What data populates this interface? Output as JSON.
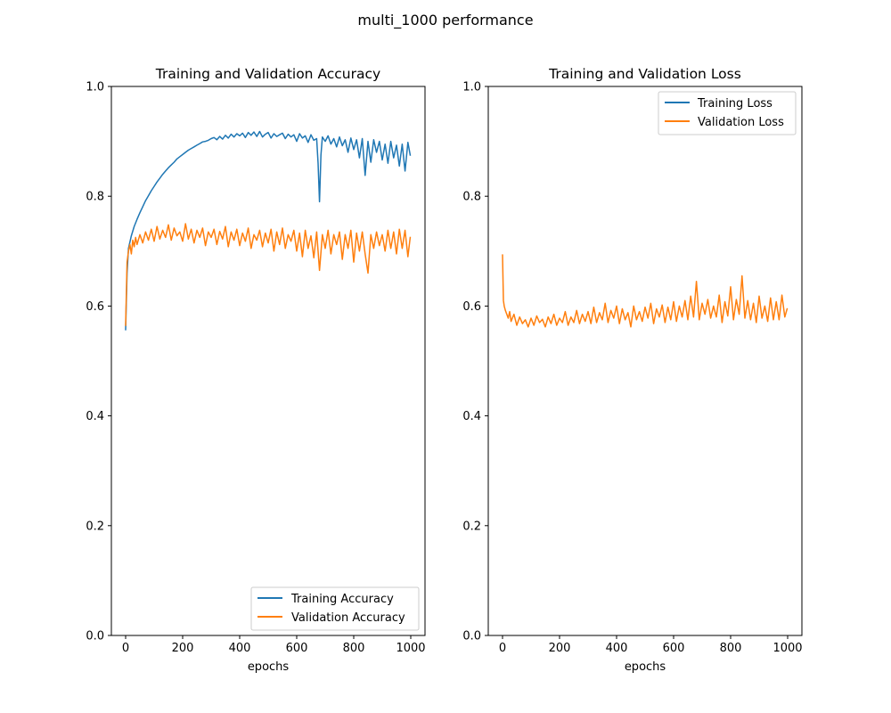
{
  "figure": {
    "suptitle": "multi_1000 performance"
  },
  "colors": {
    "training": "#1f77b4",
    "validation": "#ff7f0e"
  },
  "chart_data": [
    {
      "type": "line",
      "title": "Training and Validation Accuracy",
      "xlabel": "epochs",
      "ylabel": "",
      "xlim": [
        -50,
        1050
      ],
      "ylim": [
        0.0,
        1.0
      ],
      "xticks": [
        0,
        200,
        400,
        600,
        800,
        1000
      ],
      "xtick_labels": [
        "0",
        "200",
        "400",
        "600",
        "800",
        "1000"
      ],
      "yticks": [
        0.0,
        0.2,
        0.4,
        0.6,
        0.8,
        1.0
      ],
      "ytick_labels": [
        "0.0",
        "0.2",
        "0.4",
        "0.6",
        "0.8",
        "1.0"
      ],
      "grid": false,
      "legend_position": "lower right",
      "series": [
        {
          "name": "Training Accuracy",
          "color": "#1f77b4",
          "x": [
            0,
            5,
            10,
            20,
            30,
            40,
            50,
            60,
            70,
            80,
            90,
            100,
            110,
            120,
            130,
            140,
            150,
            160,
            170,
            180,
            190,
            200,
            210,
            220,
            230,
            240,
            250,
            260,
            270,
            280,
            290,
            300,
            310,
            320,
            330,
            340,
            350,
            360,
            370,
            380,
            390,
            400,
            410,
            420,
            430,
            440,
            450,
            460,
            470,
            480,
            490,
            500,
            510,
            520,
            530,
            540,
            550,
            560,
            570,
            580,
            590,
            600,
            610,
            620,
            630,
            640,
            650,
            660,
            670,
            675,
            680,
            685,
            690,
            700,
            710,
            720,
            730,
            740,
            750,
            760,
            770,
            780,
            790,
            800,
            810,
            820,
            830,
            840,
            850,
            860,
            870,
            880,
            890,
            900,
            910,
            920,
            930,
            940,
            950,
            960,
            970,
            980,
            990,
            998
          ],
          "y": [
            0.557,
            0.66,
            0.705,
            0.728,
            0.745,
            0.758,
            0.77,
            0.781,
            0.792,
            0.801,
            0.81,
            0.818,
            0.826,
            0.833,
            0.84,
            0.846,
            0.852,
            0.857,
            0.862,
            0.868,
            0.872,
            0.876,
            0.88,
            0.884,
            0.887,
            0.89,
            0.893,
            0.896,
            0.899,
            0.9,
            0.902,
            0.905,
            0.907,
            0.903,
            0.909,
            0.904,
            0.911,
            0.906,
            0.913,
            0.908,
            0.914,
            0.91,
            0.915,
            0.907,
            0.916,
            0.911,
            0.917,
            0.909,
            0.918,
            0.908,
            0.913,
            0.916,
            0.906,
            0.914,
            0.909,
            0.912,
            0.915,
            0.905,
            0.913,
            0.908,
            0.912,
            0.9,
            0.914,
            0.906,
            0.91,
            0.898,
            0.912,
            0.902,
            0.905,
            0.86,
            0.79,
            0.875,
            0.908,
            0.9,
            0.91,
            0.895,
            0.905,
            0.89,
            0.908,
            0.892,
            0.903,
            0.88,
            0.906,
            0.885,
            0.903,
            0.87,
            0.905,
            0.838,
            0.9,
            0.862,
            0.903,
            0.88,
            0.9,
            0.866,
            0.895,
            0.86,
            0.9,
            0.87,
            0.893,
            0.855,
            0.895,
            0.846,
            0.898,
            0.875
          ]
        },
        {
          "name": "Validation Accuracy",
          "color": "#ff7f0e",
          "x": [
            0,
            5,
            10,
            15,
            20,
            25,
            30,
            35,
            40,
            50,
            60,
            70,
            80,
            90,
            100,
            110,
            120,
            130,
            140,
            150,
            160,
            170,
            180,
            190,
            200,
            210,
            220,
            230,
            240,
            250,
            260,
            270,
            280,
            290,
            300,
            310,
            320,
            330,
            340,
            350,
            360,
            370,
            380,
            390,
            400,
            410,
            420,
            430,
            440,
            450,
            460,
            470,
            480,
            490,
            500,
            510,
            520,
            530,
            540,
            550,
            560,
            570,
            580,
            590,
            600,
            610,
            620,
            630,
            640,
            650,
            660,
            670,
            680,
            690,
            700,
            710,
            720,
            730,
            740,
            750,
            760,
            770,
            780,
            790,
            800,
            810,
            820,
            830,
            840,
            850,
            860,
            870,
            880,
            890,
            900,
            910,
            920,
            930,
            940,
            950,
            960,
            970,
            980,
            990,
            998
          ],
          "y": [
            0.565,
            0.68,
            0.7,
            0.712,
            0.695,
            0.72,
            0.708,
            0.725,
            0.712,
            0.73,
            0.715,
            0.735,
            0.72,
            0.74,
            0.718,
            0.745,
            0.722,
            0.738,
            0.725,
            0.748,
            0.72,
            0.742,
            0.728,
            0.735,
            0.718,
            0.75,
            0.722,
            0.74,
            0.715,
            0.738,
            0.725,
            0.742,
            0.71,
            0.735,
            0.725,
            0.74,
            0.712,
            0.736,
            0.722,
            0.745,
            0.708,
            0.735,
            0.72,
            0.74,
            0.71,
            0.733,
            0.718,
            0.742,
            0.705,
            0.73,
            0.72,
            0.738,
            0.708,
            0.733,
            0.715,
            0.74,
            0.7,
            0.735,
            0.712,
            0.742,
            0.705,
            0.73,
            0.718,
            0.738,
            0.7,
            0.733,
            0.69,
            0.738,
            0.705,
            0.728,
            0.688,
            0.735,
            0.665,
            0.73,
            0.705,
            0.738,
            0.695,
            0.73,
            0.712,
            0.735,
            0.685,
            0.73,
            0.705,
            0.738,
            0.68,
            0.733,
            0.7,
            0.735,
            0.695,
            0.66,
            0.73,
            0.705,
            0.735,
            0.71,
            0.73,
            0.7,
            0.738,
            0.705,
            0.735,
            0.695,
            0.74,
            0.705,
            0.738,
            0.69,
            0.725
          ]
        }
      ]
    },
    {
      "type": "line",
      "title": "Training and Validation Loss",
      "xlabel": "epochs",
      "ylabel": "",
      "xlim": [
        -50,
        1050
      ],
      "ylim": [
        0.0,
        1.0
      ],
      "xticks": [
        0,
        200,
        400,
        600,
        800,
        1000
      ],
      "xtick_labels": [
        "0",
        "200",
        "400",
        "600",
        "800",
        "1000"
      ],
      "yticks": [
        0.0,
        0.2,
        0.4,
        0.6,
        0.8,
        1.0
      ],
      "ytick_labels": [
        "0.0",
        "0.2",
        "0.4",
        "0.6",
        "0.8",
        "1.0"
      ],
      "grid": false,
      "legend_position": "upper right",
      "series": [
        {
          "name": "Training Loss",
          "color": "#1f77b4",
          "x": [],
          "y": []
        },
        {
          "name": "Validation Loss",
          "color": "#ff7f0e",
          "x": [
            0,
            3,
            6,
            10,
            15,
            20,
            25,
            30,
            40,
            50,
            60,
            70,
            80,
            90,
            100,
            110,
            120,
            130,
            140,
            150,
            160,
            170,
            180,
            190,
            200,
            210,
            220,
            230,
            240,
            250,
            260,
            270,
            280,
            290,
            300,
            310,
            320,
            330,
            340,
            350,
            360,
            370,
            380,
            390,
            400,
            410,
            420,
            430,
            440,
            450,
            460,
            470,
            480,
            490,
            500,
            510,
            520,
            530,
            540,
            550,
            560,
            570,
            580,
            590,
            600,
            610,
            620,
            630,
            640,
            650,
            660,
            670,
            680,
            690,
            700,
            710,
            720,
            730,
            740,
            750,
            760,
            770,
            780,
            790,
            800,
            810,
            820,
            830,
            840,
            850,
            860,
            870,
            880,
            890,
            900,
            910,
            920,
            930,
            940,
            950,
            960,
            970,
            980,
            990,
            998
          ],
          "y": [
            0.693,
            0.61,
            0.6,
            0.592,
            0.585,
            0.578,
            0.59,
            0.572,
            0.585,
            0.565,
            0.58,
            0.568,
            0.575,
            0.562,
            0.578,
            0.565,
            0.582,
            0.57,
            0.576,
            0.562,
            0.58,
            0.568,
            0.585,
            0.565,
            0.578,
            0.57,
            0.59,
            0.565,
            0.58,
            0.57,
            0.592,
            0.568,
            0.585,
            0.572,
            0.59,
            0.568,
            0.598,
            0.57,
            0.588,
            0.575,
            0.605,
            0.57,
            0.592,
            0.578,
            0.6,
            0.568,
            0.595,
            0.575,
            0.588,
            0.562,
            0.6,
            0.575,
            0.59,
            0.572,
            0.598,
            0.578,
            0.605,
            0.568,
            0.595,
            0.58,
            0.602,
            0.57,
            0.598,
            0.575,
            0.608,
            0.572,
            0.6,
            0.58,
            0.61,
            0.575,
            0.618,
            0.58,
            0.645,
            0.575,
            0.605,
            0.585,
            0.612,
            0.578,
            0.6,
            0.58,
            0.62,
            0.57,
            0.608,
            0.582,
            0.635,
            0.575,
            0.612,
            0.585,
            0.655,
            0.578,
            0.61,
            0.575,
            0.605,
            0.57,
            0.618,
            0.578,
            0.6,
            0.572,
            0.615,
            0.575,
            0.608,
            0.575,
            0.62,
            0.58,
            0.595
          ]
        }
      ]
    }
  ]
}
